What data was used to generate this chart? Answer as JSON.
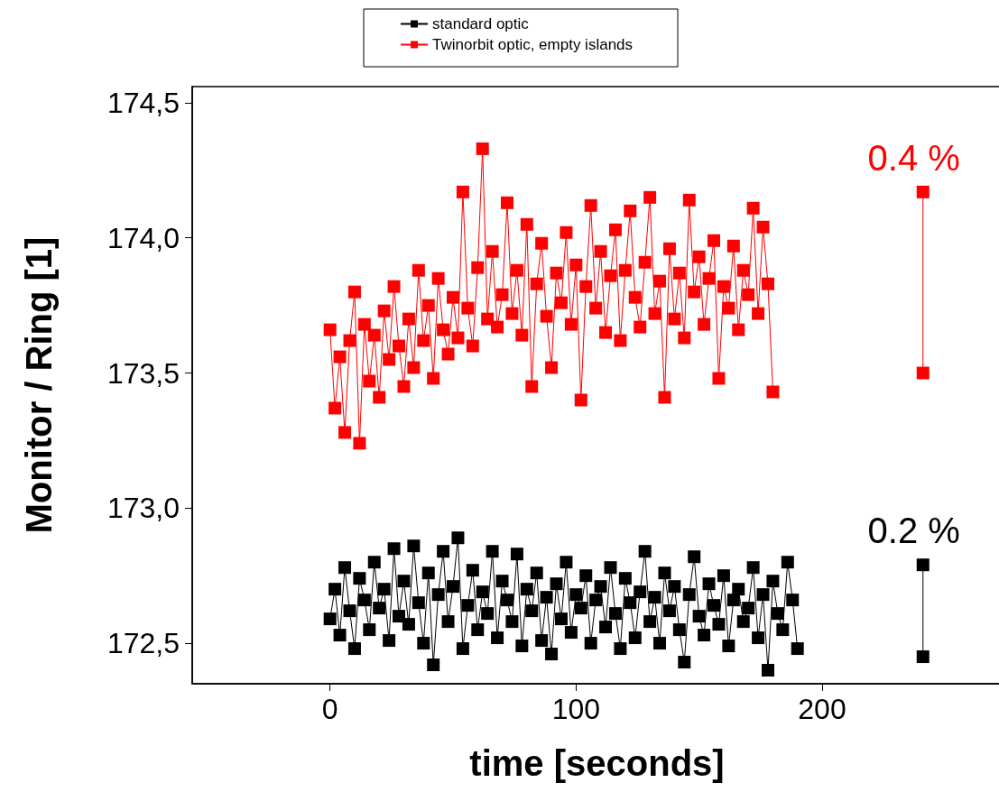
{
  "chart_data": {
    "type": "line",
    "xlabel": "time [seconds]",
    "ylabel": "Monitor / Ring [1]",
    "xlim": [
      -56,
      273
    ],
    "ylim": [
      172.35,
      174.56
    ],
    "xticks": [
      0,
      100,
      200
    ],
    "yticks": [
      {
        "value": 172.5,
        "label": "172,5"
      },
      {
        "value": 173,
        "label": "173,0"
      },
      {
        "value": 173.5,
        "label": "173,5"
      },
      {
        "value": 174,
        "label": "174,0"
      },
      {
        "value": 174.5,
        "label": "174,5"
      }
    ],
    "grid": false,
    "legend": "top",
    "marker": "square",
    "line_style": "solid",
    "annotations": [
      "0.4 %",
      "0.2 %"
    ],
    "series": [
      {
        "name": "standard optic",
        "color": "#000000",
        "x": [
          0,
          2,
          4,
          6,
          8,
          10,
          12,
          14,
          16,
          18,
          20,
          22,
          24,
          26,
          28,
          30,
          32,
          34,
          36,
          38,
          40,
          42,
          44,
          46,
          48,
          50,
          52,
          54,
          56,
          58,
          60,
          62,
          64,
          66,
          68,
          70,
          72,
          74,
          76,
          78,
          80,
          82,
          84,
          86,
          88,
          90,
          92,
          94,
          96,
          98,
          100,
          102,
          104,
          106,
          108,
          110,
          112,
          114,
          116,
          118,
          120,
          122,
          124,
          126,
          128,
          130,
          132,
          134,
          136,
          138,
          140,
          142,
          144,
          146,
          148,
          150,
          152,
          154,
          156,
          158,
          160,
          162,
          164,
          166,
          168,
          170,
          172,
          174,
          176,
          178,
          180,
          182,
          184,
          186,
          188,
          190
        ],
        "values": [
          172.59,
          172.7,
          172.53,
          172.78,
          172.62,
          172.48,
          172.74,
          172.66,
          172.55,
          172.8,
          172.63,
          172.7,
          172.51,
          172.85,
          172.6,
          172.73,
          172.57,
          172.86,
          172.65,
          172.5,
          172.76,
          172.42,
          172.68,
          172.84,
          172.58,
          172.71,
          172.89,
          172.48,
          172.64,
          172.77,
          172.55,
          172.69,
          172.61,
          172.84,
          172.52,
          172.73,
          172.66,
          172.58,
          172.83,
          172.49,
          172.7,
          172.62,
          172.76,
          172.51,
          172.67,
          172.46,
          172.72,
          172.59,
          172.8,
          172.54,
          172.68,
          172.63,
          172.75,
          172.5,
          172.66,
          172.71,
          172.56,
          172.78,
          172.61,
          172.48,
          172.74,
          172.65,
          172.52,
          172.69,
          172.84,
          172.58,
          172.67,
          172.5,
          172.76,
          172.62,
          172.71,
          172.55,
          172.43,
          172.68,
          172.82,
          172.6,
          172.53,
          172.72,
          172.64,
          172.57,
          172.75,
          172.49,
          172.66,
          172.7,
          172.58,
          172.63,
          172.78,
          172.52,
          172.68,
          172.4,
          172.73,
          172.61,
          172.55,
          172.8,
          172.66,
          172.48
        ]
      },
      {
        "name": "Twinorbit optic, empty islands",
        "color": "#ff0000",
        "x": [
          0,
          2,
          4,
          6,
          8,
          10,
          12,
          14,
          16,
          18,
          20,
          22,
          24,
          26,
          28,
          30,
          32,
          34,
          36,
          38,
          40,
          42,
          44,
          46,
          48,
          50,
          52,
          54,
          56,
          58,
          60,
          62,
          64,
          66,
          68,
          70,
          72,
          74,
          76,
          78,
          80,
          82,
          84,
          86,
          88,
          90,
          92,
          94,
          96,
          98,
          100,
          102,
          104,
          106,
          108,
          110,
          112,
          114,
          116,
          118,
          120,
          122,
          124,
          126,
          128,
          130,
          132,
          134,
          136,
          138,
          140,
          142,
          144,
          146,
          148,
          150,
          152,
          154,
          156,
          158,
          160,
          162,
          164,
          166,
          168,
          170,
          172,
          174,
          176,
          178,
          180
        ],
        "values": [
          173.66,
          173.37,
          173.56,
          173.28,
          173.62,
          173.8,
          173.24,
          173.68,
          173.47,
          173.64,
          173.41,
          173.73,
          173.55,
          173.82,
          173.6,
          173.45,
          173.7,
          173.52,
          173.88,
          173.62,
          173.75,
          173.48,
          173.85,
          173.66,
          173.57,
          173.78,
          173.63,
          174.17,
          173.74,
          173.6,
          173.89,
          174.33,
          173.7,
          173.95,
          173.67,
          173.79,
          174.13,
          173.72,
          173.88,
          173.64,
          174.05,
          173.45,
          173.83,
          173.98,
          173.71,
          173.52,
          173.87,
          173.76,
          174.02,
          173.68,
          173.9,
          173.4,
          173.82,
          174.12,
          173.74,
          173.95,
          173.65,
          173.86,
          174.03,
          173.62,
          173.88,
          174.1,
          173.78,
          173.67,
          173.91,
          174.15,
          173.72,
          173.84,
          173.41,
          173.96,
          173.7,
          173.87,
          173.63,
          174.14,
          173.8,
          173.93,
          173.68,
          173.85,
          173.99,
          173.48,
          173.82,
          173.74,
          173.97,
          173.66,
          173.88,
          173.79,
          174.11,
          173.72,
          174.04,
          173.83,
          173.43
        ]
      },
      {
        "color": "#ff0000",
        "x": [
          241,
          241
        ],
        "values": [
          174.17,
          173.5
        ]
      },
      {
        "color": "#000000",
        "x": [
          241,
          241
        ],
        "values": [
          172.79,
          172.45
        ]
      }
    ]
  }
}
